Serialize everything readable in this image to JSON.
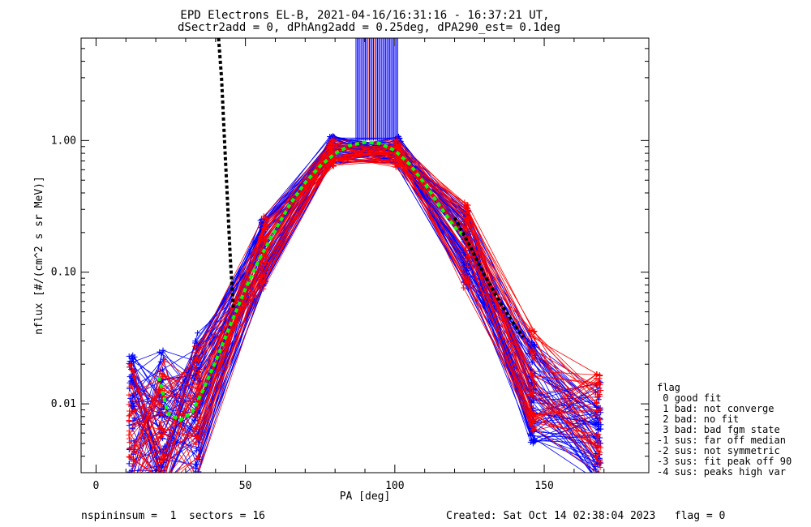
{
  "chart_data": {
    "type": "line",
    "title": "EPD Electrons EL-B, 2021-04-16/16:31:16 - 16:37:21 UT,",
    "subtitle": "dSectr2add = 0, dPhAng2add = 0.25deg, dPA290_est=   0.1deg",
    "xlabel": "PA [deg]",
    "ylabel": "nflux [#/(cm^2 s sr MeV)]",
    "x_scale": "linear",
    "y_scale": "log",
    "xlim": [
      -5,
      185
    ],
    "ylim": [
      0.003,
      6
    ],
    "x_ticks": [
      0,
      50,
      100,
      150
    ],
    "x_tick_labels": [
      "0",
      "50",
      "100",
      "150"
    ],
    "y_ticks": [
      0.01,
      0.1,
      1.0
    ],
    "y_tick_labels": [
      "0.01",
      "0.10",
      "1.00"
    ],
    "grid": false,
    "legend_position": "right",
    "legend": {
      "title": "flag",
      "entries": [
        " 0 good fit",
        " 1 bad: not converge",
        " 2 bad: no fit",
        " 3 bad: bad fgm state",
        "-1 sus: far off median",
        "-2 sus: not symmetric",
        "-3 sus: fit peak off 90",
        "-4 sus: peaks high var"
      ]
    },
    "colors": {
      "blue": "#0000ff",
      "red": "#ff0000",
      "green": "#00ff00",
      "black": "#000000"
    },
    "series": [
      {
        "color": "#0000ff",
        "style": "thin lines with + markers",
        "x": [
          12,
          22,
          34,
          56,
          79,
          101,
          124,
          146,
          168
        ],
        "y_typical": [
          0.007,
          0.0075,
          0.01,
          0.15,
          0.85,
          0.85,
          0.15,
          0.012,
          0.006
        ]
      },
      {
        "color": "#ff0000",
        "style": "thin lines with + markers",
        "x": [
          12,
          22,
          34,
          56,
          79,
          101,
          124,
          146,
          168
        ],
        "y_typical": [
          0.006,
          0.007,
          0.009,
          0.14,
          0.8,
          0.8,
          0.16,
          0.015,
          0.007
        ]
      },
      {
        "color": "#00ff00",
        "style": "thick dashed fit",
        "x": [
          21,
          24,
          28,
          32,
          36,
          40,
          45,
          50,
          55,
          60,
          65,
          70,
          75,
          80,
          85,
          90,
          95,
          100,
          105,
          110,
          115,
          120,
          123
        ],
        "y": [
          0.016,
          0.0085,
          0.0075,
          0.0085,
          0.013,
          0.021,
          0.04,
          0.075,
          0.13,
          0.21,
          0.33,
          0.48,
          0.64,
          0.8,
          0.92,
          0.97,
          0.95,
          0.84,
          0.66,
          0.47,
          0.32,
          0.22,
          0.19
        ]
      },
      {
        "color": "#000000",
        "style": "thick dashed",
        "x": [
          41,
          42,
          43,
          45,
          46
        ],
        "y": [
          6,
          3.0,
          1.0,
          0.12,
          0.052
        ]
      },
      {
        "color": "#000000",
        "style": "thick dashed",
        "x": [
          120,
          125,
          130,
          135,
          140,
          143
        ],
        "y": [
          0.26,
          0.16,
          0.095,
          0.06,
          0.04,
          0.032
        ]
      }
    ],
    "saturated_block": {
      "color": "#0000ff",
      "x_range": [
        87,
        101
      ],
      "y_range": [
        1.0,
        6
      ]
    }
  },
  "footer": {
    "left": "nspininsum =  1  sectors = 16",
    "right": "Created: Sat Oct 14 02:38:04 2023   flag = 0"
  }
}
